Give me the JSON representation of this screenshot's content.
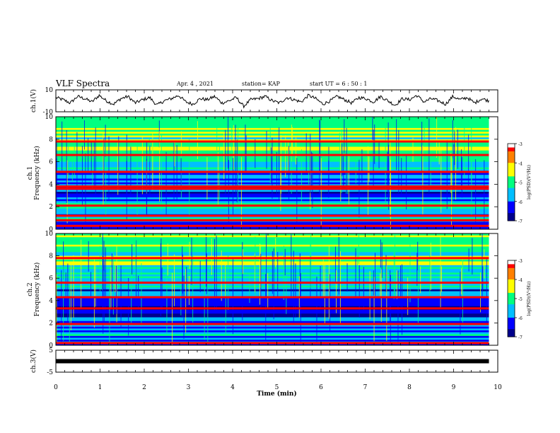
{
  "header": {
    "title": "VLF Spectra",
    "date": "Apr. 4 , 2021",
    "station": "station= KAP",
    "start": "start UT = 6 : 50 : 1"
  },
  "chart_data": [
    {
      "type": "line",
      "ylabel": "ch.1(V)",
      "ylim": [
        -10,
        10
      ],
      "ytick_labels": [
        "10",
        "-10"
      ],
      "series": [
        {
          "values": [
            3,
            1,
            -2,
            4,
            2,
            -1,
            5,
            0,
            -3,
            2,
            4,
            -2,
            1,
            3,
            -4,
            0,
            2,
            5,
            -1,
            -3,
            2,
            1,
            4,
            -2,
            0,
            3,
            -5,
            1,
            2,
            4,
            0,
            -2,
            3,
            1,
            -1,
            5,
            2,
            -3,
            0,
            4,
            1,
            -2,
            3,
            2,
            -1,
            4,
            0,
            -4,
            2,
            1,
            5,
            -1,
            2,
            0,
            -3,
            4,
            1,
            3,
            -2,
            2,
            0
          ]
        }
      ]
    },
    {
      "type": "heatmap",
      "ylabel": "ch.1\nFrequency (kHz)",
      "ylim": [
        0,
        10
      ],
      "ytick_labels": [
        "10",
        "8",
        "6",
        "4",
        "2",
        "0"
      ],
      "colorbar": {
        "ticks": [
          "-3",
          "-4",
          "-5",
          "-6",
          "-7"
        ],
        "label": "log(PSD)(V²/Hz)",
        "range": [
          -7,
          -3
        ]
      },
      "strong_lines_khz": [
        0.3,
        0.8,
        1.2,
        2.1,
        3.6,
        3.8,
        5.1,
        6.6,
        7.8
      ]
    },
    {
      "type": "heatmap",
      "ylabel": "ch.2\nFrequency (kHz)",
      "ylim": [
        0,
        10
      ],
      "ytick_labels": [
        "10",
        "8",
        "6",
        "4",
        "2",
        "0"
      ],
      "colorbar": {
        "ticks": [
          "-3",
          "-4",
          "-5",
          "-6",
          "-7"
        ],
        "label": "log(PSD)(V²/Hz)",
        "range": [
          -7,
          -3
        ]
      },
      "strong_lines_khz": [
        0.2,
        1.9,
        3.3,
        4.3,
        5.6,
        7.8
      ]
    },
    {
      "type": "line",
      "ylabel": "ch.3(V)",
      "ylim": [
        -5,
        5
      ],
      "ytick_labels": [
        "5",
        "-5"
      ],
      "series": [
        {
          "values": [
            0,
            0
          ]
        }
      ]
    }
  ],
  "time_axis": {
    "xlabel": "Time (min)",
    "xlim": [
      0,
      10
    ],
    "ticks": [
      "0",
      "1",
      "2",
      "3",
      "4",
      "5",
      "6",
      "7",
      "8",
      "9",
      "10"
    ],
    "data_end": 9.8
  },
  "colors": {
    "trace": "#000000",
    "colormap": [
      "#00008c",
      "#0000ff",
      "#00bfff",
      "#00ff80",
      "#ffff00",
      "#ff8000",
      "#ff0000",
      "#ffffff"
    ]
  }
}
